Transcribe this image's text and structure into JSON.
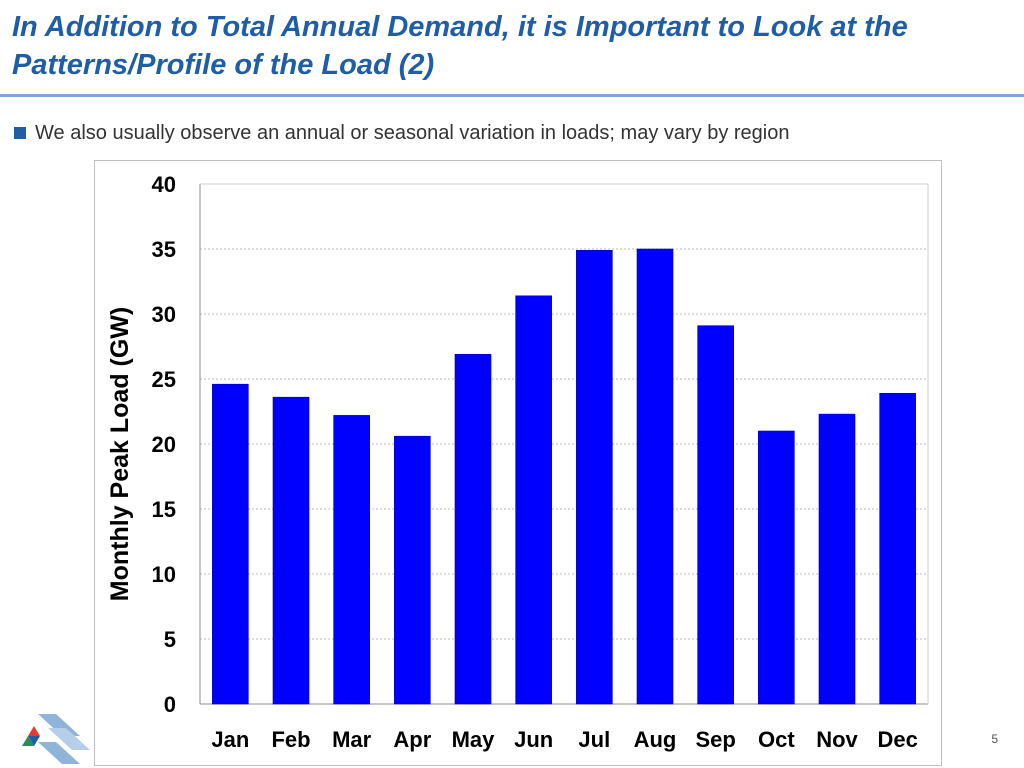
{
  "slide": {
    "title": "In Addition to Total Annual Demand, it is Important to Look at the Patterns/Profile of the Load (2)",
    "bullet": "We also usually observe an annual or seasonal variation in loads; may vary by region",
    "page_number": "5"
  },
  "colors": {
    "title": "#1f5ea6",
    "bar": "#0000ff",
    "rule": "#7ea6d4"
  },
  "chart_data": {
    "type": "bar",
    "categories": [
      "Jan",
      "Feb",
      "Mar",
      "Apr",
      "May",
      "Jun",
      "Jul",
      "Aug",
      "Sep",
      "Oct",
      "Nov",
      "Dec"
    ],
    "values": [
      24.6,
      23.6,
      22.2,
      20.6,
      26.9,
      31.4,
      34.9,
      35.0,
      29.1,
      21.0,
      22.3,
      23.9
    ],
    "title": "",
    "xlabel": "",
    "ylabel": "Monthly Peak Load (GW)",
    "ylim": [
      0,
      40
    ],
    "yticks": [
      0,
      5,
      10,
      15,
      20,
      25,
      30,
      35,
      40
    ],
    "grid": true,
    "legend": "none"
  }
}
